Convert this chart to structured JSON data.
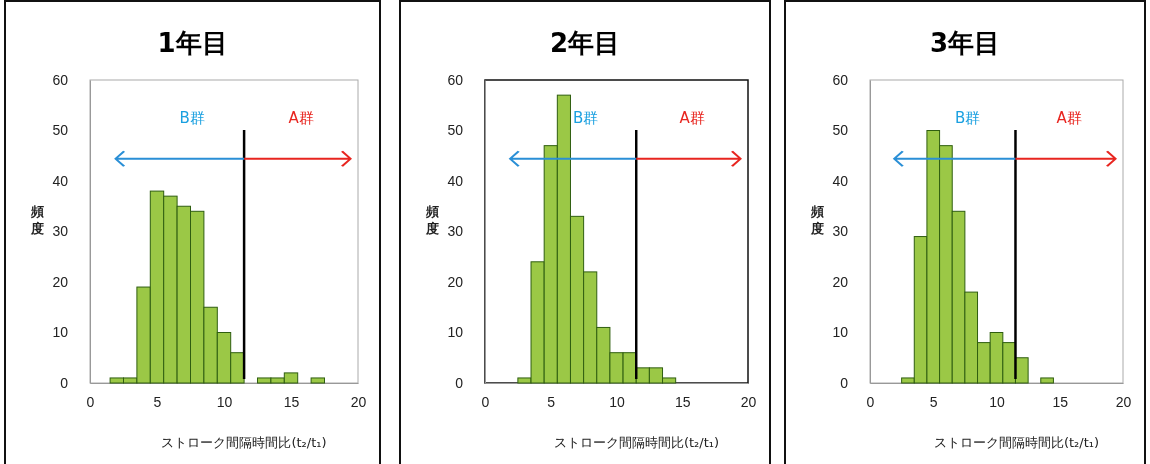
{
  "chart_data": [
    {
      "type": "histogram",
      "title": "1年目",
      "xlabel": "ストローク間隔時間比(t₂/t₁)",
      "ylabel": "頻度",
      "color": "#9bc846",
      "bins": [
        1.5,
        2.5,
        3.5,
        4.5,
        5.5,
        6.5,
        7.5,
        8.5,
        9.5,
        10.5,
        11.5,
        12.5,
        13.5,
        14.5,
        15.5,
        16.5,
        17.5
      ],
      "values": [
        1,
        1,
        19,
        38,
        37,
        35,
        34,
        15,
        10,
        6,
        0,
        1,
        1,
        2,
        0,
        1
      ],
      "xlim": [
        0,
        20
      ],
      "xticks": [
        0,
        5,
        10,
        15,
        20
      ],
      "ylim": [
        0,
        60
      ],
      "yticks": [
        0,
        10,
        20,
        30,
        40,
        50,
        60
      ],
      "ref_lines": [
        {
          "axis": "x",
          "value": 11.5
        }
      ],
      "annotations": [
        "B群",
        "A群"
      ]
    },
    {
      "type": "histogram",
      "title": "2年目",
      "xlabel": "ストローク間隔時間比(t₂/t₁)",
      "ylabel": "頻度",
      "color": "#9bc846",
      "bins": [
        2.5,
        3.5,
        4.5,
        5.5,
        6.5,
        7.5,
        8.5,
        9.5,
        10.5,
        11.5,
        12.5,
        13.5,
        14.5
      ],
      "values": [
        1,
        24,
        47,
        57,
        33,
        22,
        11,
        6,
        6,
        3,
        3,
        1
      ],
      "xlim": [
        0,
        20
      ],
      "xticks": [
        0,
        5,
        10,
        15,
        20
      ],
      "ylim": [
        0,
        60
      ],
      "yticks": [
        0,
        10,
        20,
        30,
        40,
        50,
        60
      ],
      "ref_lines": [
        {
          "axis": "x",
          "value": 11.5
        }
      ],
      "annotations": [
        "B群",
        "A群"
      ]
    },
    {
      "type": "histogram",
      "title": "3年目",
      "xlabel": "ストローク間隔時間比(t₂/t₁)",
      "ylabel": "頻度",
      "color": "#9bc846",
      "bins": [
        2.5,
        3.5,
        4.5,
        5.5,
        6.5,
        7.5,
        8.5,
        9.5,
        10.5,
        11.5,
        12.5,
        13.5,
        14.5
      ],
      "values": [
        1,
        29,
        50,
        47,
        34,
        18,
        8,
        10,
        8,
        5,
        0,
        1
      ],
      "xlim": [
        0,
        20
      ],
      "xticks": [
        0,
        5,
        10,
        15,
        20
      ],
      "ylim": [
        0,
        60
      ],
      "yticks": [
        0,
        10,
        20,
        30,
        40,
        50,
        60
      ],
      "ref_lines": [
        {
          "axis": "x",
          "value": 11.5
        }
      ],
      "annotations": [
        "B群",
        "A群"
      ]
    }
  ]
}
